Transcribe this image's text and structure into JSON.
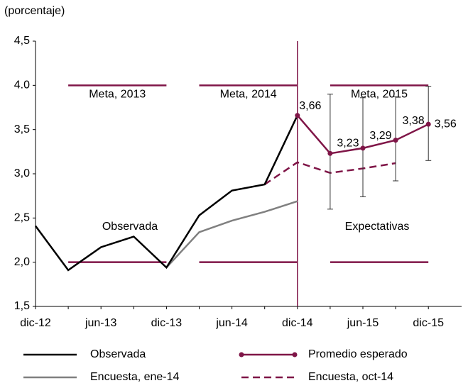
{
  "chart_data": {
    "type": "line",
    "y_unit": "(porcentaje)",
    "categories": [
      "dic-12",
      null,
      "jun-13",
      null,
      "dic-13",
      null,
      "jun-14",
      null,
      "dic-14",
      null,
      "jun-15",
      null,
      "dic-15"
    ],
    "ylim": [
      1.5,
      4.5
    ],
    "yticks": [
      {
        "value": 1.5,
        "label": "1,5"
      },
      {
        "value": 2.0,
        "label": "2,0"
      },
      {
        "value": 2.5,
        "label": "2,5"
      },
      {
        "value": 3.0,
        "label": "3,0"
      },
      {
        "value": 3.5,
        "label": "3,5"
      },
      {
        "value": 4.0,
        "label": "4.0"
      },
      {
        "value": 4.5,
        "label": "4,5"
      }
    ],
    "series": [
      {
        "name": "Observada",
        "color": "#000000",
        "values": [
          2.41,
          1.91,
          2.17,
          2.29,
          1.94,
          2.53,
          2.81,
          2.88,
          3.66,
          null,
          null,
          null,
          null
        ]
      },
      {
        "name": "Promedio esperado",
        "color": "#7f1547",
        "marker": true,
        "values": [
          null,
          null,
          null,
          null,
          null,
          null,
          null,
          null,
          3.66,
          3.23,
          3.29,
          3.38,
          3.56
        ],
        "value_labels": [
          null,
          null,
          null,
          null,
          null,
          null,
          null,
          null,
          "3,66",
          "3,23",
          "3,29",
          "3,38",
          "3,56"
        ],
        "upper": [
          null,
          null,
          null,
          null,
          null,
          null,
          null,
          null,
          null,
          3.9,
          3.86,
          3.87,
          3.99
        ],
        "lower": [
          null,
          null,
          null,
          null,
          null,
          null,
          null,
          null,
          null,
          2.6,
          2.74,
          2.92,
          3.15
        ]
      },
      {
        "name": "Encuesta, ene-14",
        "color": "#808080",
        "values": [
          null,
          null,
          null,
          null,
          1.94,
          2.34,
          2.47,
          2.57,
          2.69,
          null,
          null,
          null,
          null
        ]
      },
      {
        "name": "Encuesta, oct-14",
        "color": "#7f1547",
        "dashed": true,
        "values": [
          null,
          null,
          null,
          null,
          null,
          null,
          null,
          2.88,
          3.13,
          3.01,
          3.06,
          3.12,
          null
        ]
      }
    ],
    "targets": [
      {
        "label": "Meta, 2013",
        "upper": 4.0,
        "lower": 2.0
      },
      {
        "label": "Meta, 2014",
        "upper": 4.0,
        "lower": 2.0
      },
      {
        "label": "Meta, 2015",
        "upper": 4.0,
        "lower": 2.0
      }
    ],
    "annotations": [
      "Observada",
      "Expectativas"
    ]
  }
}
